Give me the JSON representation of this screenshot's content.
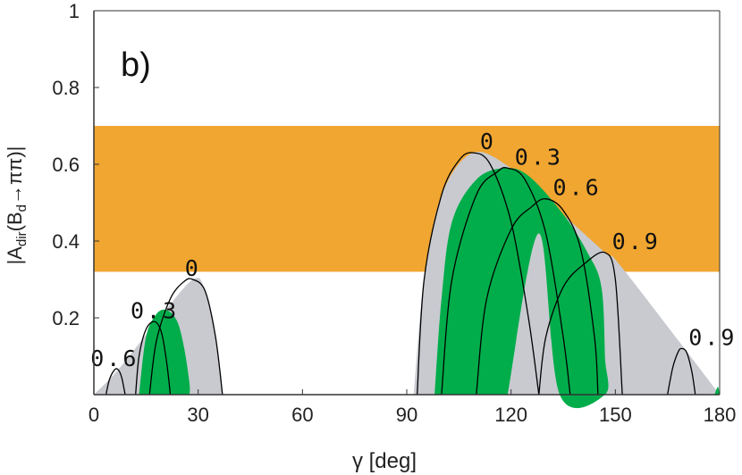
{
  "chart_data": {
    "type": "line",
    "panel_label": "b)",
    "x_label": "γ [deg]",
    "y_label_parts": [
      "|A",
      "dir",
      "(B",
      "d",
      "→ππ)|"
    ],
    "xlim": [
      0,
      180
    ],
    "ylim": [
      0,
      1
    ],
    "xticks": [
      0,
      30,
      60,
      90,
      120,
      150,
      180
    ],
    "yticks": [
      0.2,
      0.4,
      0.6,
      0.8,
      1
    ],
    "band": {
      "ylim": [
        0.32,
        0.7
      ],
      "color": "#f0a630"
    },
    "regions": [
      {
        "color": "#c8cad0",
        "x": [
          0,
          7,
          18,
          28.5,
          32,
          35,
          37
        ],
        "y": [
          0,
          0.065,
          0.19,
          0.3,
          0.27,
          0.15,
          0
        ]
      },
      {
        "color": "#c8cad0",
        "x": [
          92,
          95,
          100,
          109,
          120,
          130,
          147,
          152,
          180
        ],
        "y": [
          0,
          0.3,
          0.52,
          0.63,
          0.59,
          0.51,
          0.37,
          0.33,
          0
        ]
      },
      {
        "color": "#00ad4a",
        "x": [
          13,
          15,
          18,
          21,
          24,
          26,
          27.5,
          27.5
        ],
        "y": [
          0,
          0.15,
          0.21,
          0.22,
          0.19,
          0.12,
          0.03,
          0
        ]
      },
      {
        "color": "#00ad4a",
        "x": [
          98,
          100,
          103,
          110,
          118,
          125,
          135,
          142,
          146,
          147,
          147,
          134,
          128,
          119
        ],
        "y": [
          0,
          0.25,
          0.45,
          0.56,
          0.59,
          0.57,
          0.47,
          0.37,
          0.28,
          0.1,
          0,
          0,
          0.42,
          0
        ]
      },
      {
        "color": "#00ad4a",
        "x": [
          178.5,
          179.5,
          180
        ],
        "y": [
          0,
          0.02,
          0
        ]
      }
    ],
    "series": [
      {
        "name": "0.6",
        "color": "#000000",
        "x": [
          3.5,
          4.5,
          6,
          7,
          8,
          9
        ],
        "y": [
          0,
          0.04,
          0.065,
          0.065,
          0.045,
          0
        ]
      },
      {
        "name": "0.3",
        "color": "#000000",
        "x": [
          12,
          13,
          15,
          17.5,
          19.5,
          21,
          22
        ],
        "y": [
          0,
          0.1,
          0.17,
          0.19,
          0.16,
          0.08,
          0
        ]
      },
      {
        "name": "0",
        "color": "#000000",
        "x": [
          16,
          18,
          22,
          26,
          28.5,
          32,
          35,
          37
        ],
        "y": [
          0,
          0.14,
          0.25,
          0.295,
          0.3,
          0.27,
          0.15,
          0
        ]
      },
      {
        "name": "0",
        "color": "#000000",
        "x": [
          93,
          95,
          100,
          105,
          109,
          114,
          120,
          125,
          128
        ],
        "y": [
          0,
          0.3,
          0.52,
          0.61,
          0.63,
          0.6,
          0.45,
          0.2,
          0
        ]
      },
      {
        "name": "0.3",
        "color": "#000000",
        "x": [
          100,
          103,
          110,
          116,
          119,
          124,
          130,
          135,
          137
        ],
        "y": [
          0,
          0.3,
          0.52,
          0.58,
          0.59,
          0.56,
          0.42,
          0.15,
          0
        ]
      },
      {
        "name": "0.6",
        "color": "#000000",
        "x": [
          110,
          113,
          120,
          126,
          130,
          135,
          140,
          144,
          145
        ],
        "y": [
          0,
          0.25,
          0.43,
          0.49,
          0.51,
          0.48,
          0.38,
          0.15,
          0
        ]
      },
      {
        "name": "0.9",
        "color": "#000000",
        "x": [
          128,
          130,
          135,
          141,
          147,
          150,
          152
        ],
        "y": [
          0,
          0.15,
          0.28,
          0.34,
          0.37,
          0.3,
          0
        ]
      },
      {
        "name": "0.9",
        "color": "#000000",
        "x": [
          165,
          166.5,
          168,
          169,
          170.5,
          172,
          173
        ],
        "y": [
          0,
          0.07,
          0.11,
          0.12,
          0.11,
          0.06,
          0
        ]
      }
    ]
  }
}
